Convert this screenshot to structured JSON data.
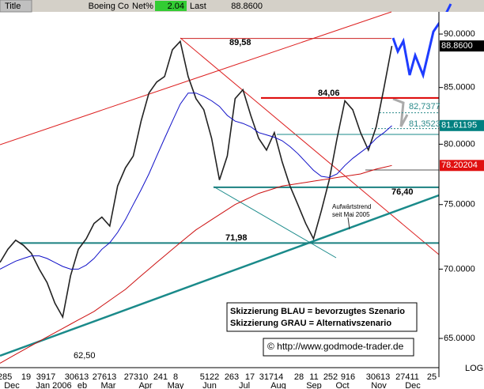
{
  "header": {
    "title_label": "Title",
    "name": "Boeing Co",
    "net_label": "Net%",
    "net_value": "2.04",
    "last_label": "Last",
    "last_value": "88.8600"
  },
  "chart_data": {
    "type": "line",
    "log_scale": true,
    "x": [
      0,
      1,
      2,
      3,
      4,
      5,
      6,
      7,
      8,
      9,
      10,
      11,
      12,
      13,
      14,
      15,
      16,
      17,
      18,
      19,
      20,
      21,
      22,
      23,
      24,
      25,
      26,
      27,
      28,
      29,
      30,
      31,
      32,
      33,
      34,
      35,
      36,
      37,
      38,
      39,
      40,
      41,
      42,
      43,
      44,
      45,
      46,
      47,
      48,
      49,
      50
    ],
    "xlim": [
      0,
      56
    ],
    "ylim": [
      63,
      92.16
    ],
    "yticks": [
      {
        "value": 65,
        "label": "65.0000"
      },
      {
        "value": 70,
        "label": "70.0000"
      },
      {
        "value": 75,
        "label": "75.0000"
      },
      {
        "value": 80,
        "label": "80.0000"
      },
      {
        "value": 85,
        "label": "85.0000"
      },
      {
        "value": 90,
        "label": "90.0000"
      }
    ],
    "scale_label": "LOG",
    "day_labels": [
      "285",
      "19",
      "3917",
      "30613",
      "27613",
      "27310",
      "241",
      "8",
      "5122",
      "263",
      "17",
      "31714",
      "28",
      "11",
      "252",
      "916",
      "30613",
      "27411",
      "25"
    ],
    "month_labels": [
      "Dec",
      "Jan 2006",
      "eb",
      "Mar",
      "Apr",
      "May",
      "Jun",
      "Jul",
      "Aug",
      "Sep",
      "Oct",
      "Nov",
      "Dec"
    ],
    "series": [
      {
        "color": "#222222",
        "values": [
          70.5,
          71.5,
          72.2,
          71.8,
          71.2,
          70,
          69,
          67.5,
          66.5,
          69.5,
          71.5,
          72.3,
          73.5,
          74,
          73.3,
          76.5,
          78,
          79,
          82,
          84.5,
          85.5,
          86,
          88.5,
          89.3,
          86,
          84,
          83,
          80.5,
          77,
          79,
          84,
          84.8,
          82.5,
          80.5,
          79.5,
          81,
          78.5,
          76.5,
          75,
          73.5,
          72.3,
          74.5,
          77,
          80.5,
          83.8,
          83,
          81,
          79.5,
          81.5,
          85,
          88.86
        ]
      },
      {
        "color": "#1010c8",
        "values": [
          70,
          70.3,
          70.6,
          70.8,
          71,
          71,
          70.8,
          70.5,
          70.2,
          70,
          70,
          70.3,
          70.8,
          71.5,
          72,
          72.8,
          73.8,
          75,
          76.2,
          77.5,
          79,
          80.5,
          82,
          83.5,
          84.5,
          84.5,
          84.2,
          83.8,
          83.3,
          82.5,
          82,
          81.8,
          81.5,
          81,
          80.8,
          80.6,
          80.3,
          79.8,
          79.2,
          78.5,
          77.8,
          77.3,
          77.2,
          77.5,
          78.2,
          78.8,
          79.3,
          79.8,
          80.5,
          81,
          81.6
        ]
      },
      {
        "color": "#cc1010",
        "values": [
          63.3,
          63.6,
          63.9,
          64.2,
          64.5,
          64.8,
          65.1,
          65.4,
          65.7,
          66,
          66.3,
          66.6,
          66.9,
          67.3,
          67.7,
          68.1,
          68.5,
          69,
          69.5,
          70,
          70.5,
          71,
          71.5,
          72,
          72.5,
          73,
          73.4,
          73.8,
          74.2,
          74.6,
          75,
          75.3,
          75.6,
          75.9,
          76.1,
          76.3,
          76.5,
          76.6,
          76.7,
          76.8,
          76.9,
          77,
          77.1,
          77.2,
          77.3,
          77.4,
          77.5,
          77.7,
          77.9,
          78.05,
          78.2
        ]
      }
    ],
    "last_markers": [
      {
        "value": 88.86,
        "label": "88.8600",
        "color": "#000000"
      },
      {
        "value": 81.61195,
        "label": "81.61195",
        "color": "#008080"
      },
      {
        "value": 78.20204,
        "label": "78.20204",
        "color": "#e01010"
      }
    ],
    "levels": [
      {
        "value": 89.58,
        "label": "89,58",
        "color": "#cc2020"
      },
      {
        "value": 84.06,
        "label": "84,06",
        "color": "#dd0000"
      },
      {
        "value": 82.7377,
        "label": "82,7377",
        "color": "#2a8a8a"
      },
      {
        "value": 81.3523,
        "label": "81,3523",
        "color": "#2a8a8a"
      },
      {
        "value": 76.4,
        "label": "76,40",
        "color": "#1a8080"
      },
      {
        "value": 71.98,
        "label": "71,98",
        "color": "#1a8080"
      }
    ],
    "low_label": {
      "value": 62.5,
      "label": "62,50"
    },
    "trend_note": [
      "Aufwärtstrend",
      "seit Mai 2005"
    ],
    "legend_lines": [
      "Skizzierung BLAU = bevorzugtes Szenario",
      "Skizzierung GRAU = Alternativszenario"
    ],
    "copyright": "© http://www.godmode-trader.de"
  }
}
